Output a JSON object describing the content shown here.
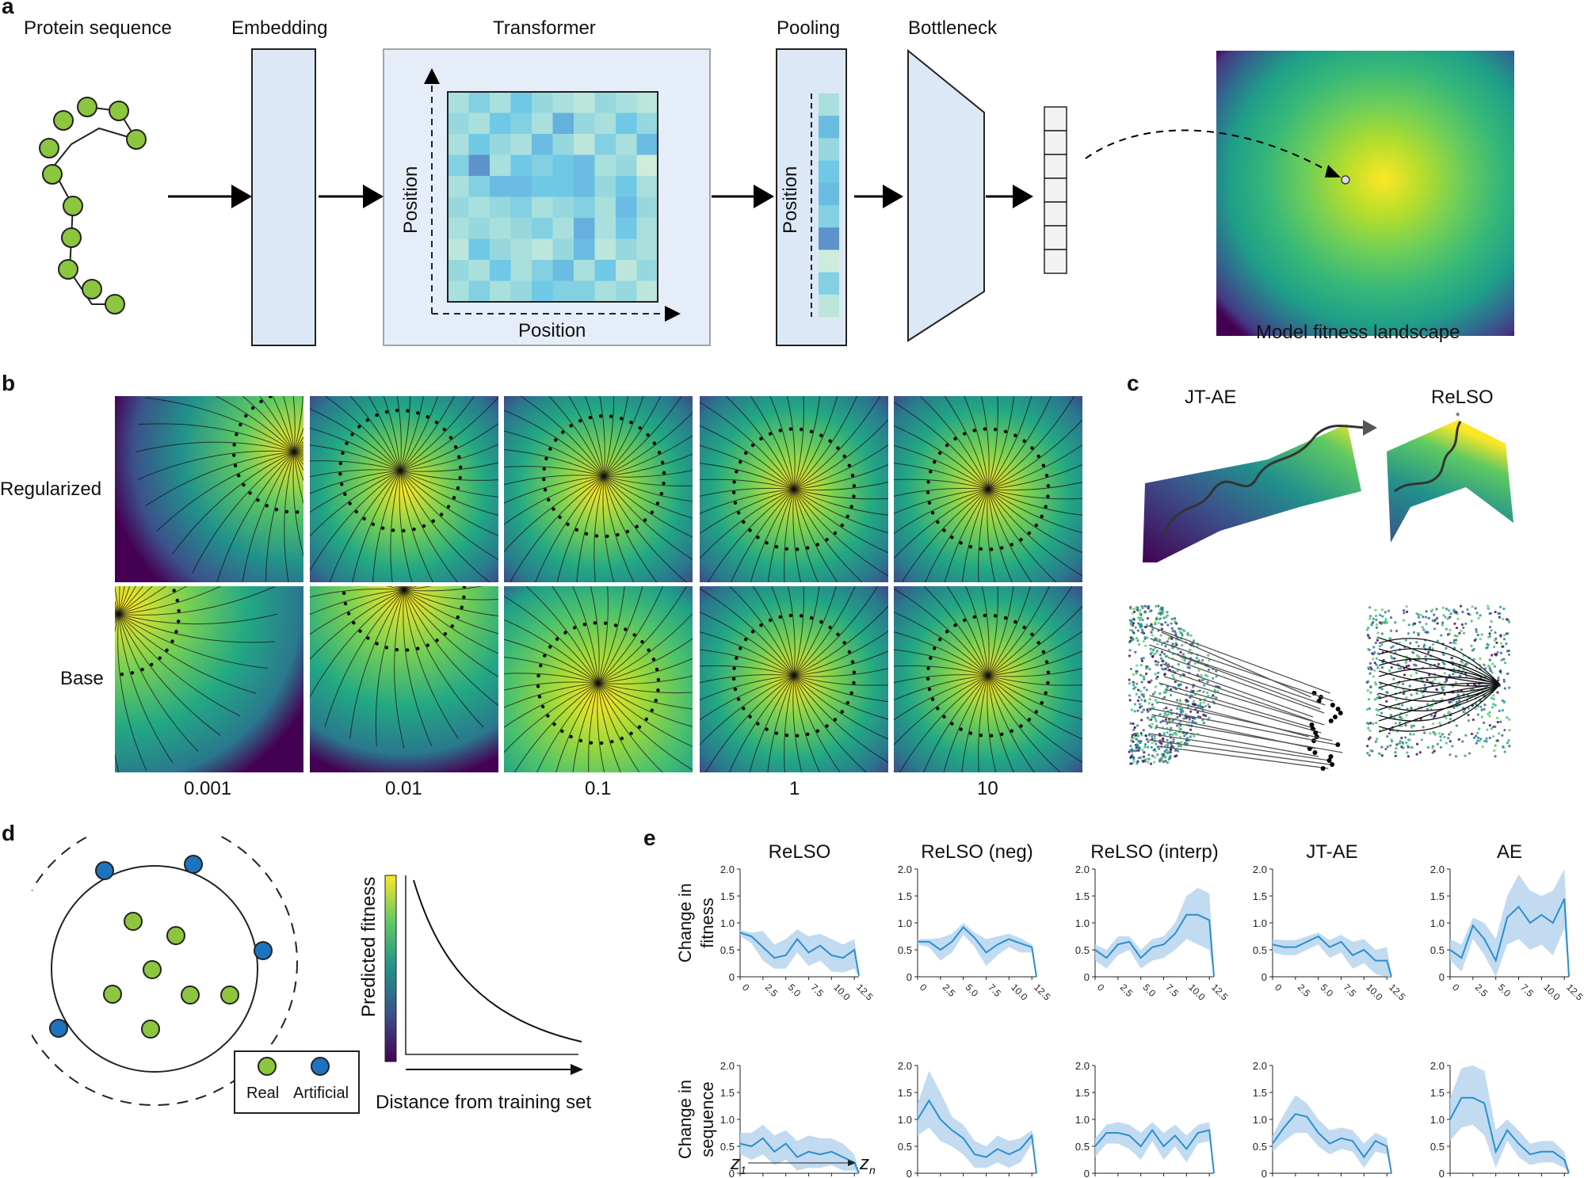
{
  "panel_labels": {
    "a": "a",
    "b": "b",
    "c": "c",
    "d": "d",
    "e": "e"
  },
  "panel_a": {
    "protein_sequence": "Protein sequence",
    "embedding": "Embedding",
    "transformer": "Transformer",
    "pooling": "Pooling",
    "bottleneck": "Bottleneck",
    "position_y": "Position",
    "position_x": "Position",
    "pooling_position": "Position",
    "landscape_caption": "Model fitness landscape",
    "heatmap_values": [
      [
        0.2,
        0.4,
        0.2,
        0.5,
        0.3,
        0.2,
        0.1,
        0.3,
        0.2,
        0.1
      ],
      [
        0.3,
        0.2,
        0.5,
        0.4,
        0.2,
        0.7,
        0.3,
        0.2,
        0.5,
        0.3
      ],
      [
        0.2,
        0.5,
        0.3,
        0.2,
        0.6,
        0.3,
        0.1,
        0.4,
        0.2,
        0.6
      ],
      [
        0.4,
        0.9,
        0.2,
        0.5,
        0.4,
        0.5,
        0.6,
        0.2,
        0.3,
        0.0
      ],
      [
        0.2,
        0.4,
        0.6,
        0.6,
        0.5,
        0.5,
        0.6,
        0.3,
        0.5,
        0.2
      ],
      [
        0.3,
        0.2,
        0.3,
        0.4,
        0.2,
        0.3,
        0.4,
        0.2,
        0.6,
        0.3
      ],
      [
        0.2,
        0.3,
        0.2,
        0.3,
        0.4,
        0.2,
        0.7,
        0.2,
        0.5,
        0.2
      ],
      [
        0.1,
        0.5,
        0.3,
        0.2,
        0.1,
        0.3,
        0.6,
        0.1,
        0.3,
        0.2
      ],
      [
        0.3,
        0.2,
        0.5,
        0.2,
        0.4,
        0.6,
        0.2,
        0.5,
        0.1,
        0.3
      ],
      [
        0.2,
        0.4,
        0.2,
        0.3,
        0.5,
        0.4,
        0.4,
        0.2,
        0.3,
        0.1
      ]
    ],
    "pooling_values": [
      0.2,
      0.6,
      0.3,
      0.5,
      0.6,
      0.4,
      0.9,
      0.0,
      0.4,
      0.1
    ]
  },
  "panel_b": {
    "row_labels": [
      "Regularized",
      "Base"
    ],
    "col_labels": [
      "0.001",
      "0.01",
      "0.1",
      "1",
      "10"
    ]
  },
  "panel_c": {
    "titles": [
      "JT-AE",
      "ReLSO"
    ]
  },
  "panel_d": {
    "colorbar_label": "Predicted fitness",
    "x_label": "Distance from training set",
    "legend_real": "Real",
    "legend_artificial": "Artificial",
    "real_color": "#8cc63f",
    "artificial_color": "#1e73be"
  },
  "chart_data": [
    {
      "type": "line",
      "title": "ReLSO",
      "ylabel": "Change in fitness",
      "ylim": [
        0,
        2.0
      ],
      "x": [
        0,
        1.25,
        2.5,
        3.75,
        5.0,
        6.25,
        7.5,
        8.75,
        10.0,
        11.25,
        12.5,
        13
      ],
      "series": [
        {
          "name": "mean",
          "values": [
            0.82,
            0.75,
            0.55,
            0.35,
            0.4,
            0.7,
            0.45,
            0.58,
            0.4,
            0.35,
            0.5,
            0.02
          ],
          "upper": [
            0.87,
            0.82,
            0.85,
            0.6,
            0.7,
            0.88,
            0.75,
            0.8,
            0.7,
            0.6,
            0.7,
            0.05
          ],
          "lower": [
            0.76,
            0.62,
            0.3,
            0.15,
            0.15,
            0.45,
            0.2,
            0.3,
            0.1,
            0.08,
            0.15,
            0.0
          ]
        }
      ]
    },
    {
      "type": "line",
      "title": "ReLSO (neg)",
      "ylabel": "Change in fitness",
      "ylim": [
        0,
        2.0
      ],
      "x": [
        0,
        1.25,
        2.5,
        3.75,
        5.0,
        6.25,
        7.5,
        8.75,
        10.0,
        11.25,
        12.5,
        13
      ],
      "series": [
        {
          "name": "mean",
          "values": [
            0.65,
            0.65,
            0.5,
            0.65,
            0.92,
            0.72,
            0.45,
            0.6,
            0.7,
            0.62,
            0.55,
            0.0
          ],
          "upper": [
            0.7,
            0.7,
            0.72,
            0.8,
            1.0,
            0.82,
            0.7,
            0.75,
            0.8,
            0.72,
            0.6,
            0.02
          ],
          "lower": [
            0.6,
            0.55,
            0.3,
            0.45,
            0.78,
            0.55,
            0.2,
            0.4,
            0.55,
            0.45,
            0.45,
            0.0
          ]
        }
      ]
    },
    {
      "type": "line",
      "title": "ReLSO (interp)",
      "ylabel": "Change in fitness",
      "ylim": [
        0,
        2.0
      ],
      "x": [
        0,
        1.25,
        2.5,
        3.75,
        5.0,
        6.25,
        7.5,
        8.75,
        10.0,
        11.25,
        12.5,
        13
      ],
      "series": [
        {
          "name": "mean",
          "values": [
            0.5,
            0.35,
            0.6,
            0.65,
            0.35,
            0.55,
            0.6,
            0.8,
            1.15,
            1.15,
            1.05,
            0.0
          ],
          "upper": [
            0.6,
            0.5,
            0.75,
            0.75,
            0.5,
            0.7,
            0.75,
            1.0,
            1.5,
            1.65,
            1.55,
            0.05
          ],
          "lower": [
            0.3,
            0.15,
            0.4,
            0.5,
            0.15,
            0.3,
            0.35,
            0.5,
            0.7,
            0.6,
            0.5,
            0.0
          ]
        }
      ]
    },
    {
      "type": "line",
      "title": "JT-AE",
      "ylabel": "Change in fitness",
      "ylim": [
        0,
        2.0
      ],
      "x": [
        0,
        1.25,
        2.5,
        3.75,
        5.0,
        6.25,
        7.5,
        8.75,
        10.0,
        11.25,
        12.5,
        13
      ],
      "series": [
        {
          "name": "mean",
          "values": [
            0.6,
            0.55,
            0.55,
            0.65,
            0.75,
            0.55,
            0.65,
            0.4,
            0.5,
            0.3,
            0.3,
            0.0
          ],
          "upper": [
            0.7,
            0.68,
            0.68,
            0.75,
            0.82,
            0.68,
            0.78,
            0.65,
            0.7,
            0.5,
            0.55,
            0.05
          ],
          "lower": [
            0.45,
            0.4,
            0.4,
            0.5,
            0.6,
            0.35,
            0.45,
            0.15,
            0.25,
            0.05,
            0.0,
            0.0
          ]
        }
      ]
    },
    {
      "type": "line",
      "title": "AE",
      "ylabel": "Change in fitness",
      "ylim": [
        0,
        2.0
      ],
      "x": [
        0,
        1.25,
        2.5,
        3.75,
        5.0,
        6.25,
        7.5,
        8.75,
        10.0,
        11.25,
        12.5,
        13
      ],
      "series": [
        {
          "name": "mean",
          "values": [
            0.5,
            0.35,
            0.95,
            0.7,
            0.3,
            1.1,
            1.3,
            1.0,
            1.15,
            1.0,
            1.45,
            0.0
          ],
          "upper": [
            0.7,
            0.6,
            1.1,
            1.0,
            0.7,
            1.5,
            1.9,
            1.6,
            1.5,
            1.6,
            2.0,
            0.2
          ],
          "lower": [
            0.3,
            0.1,
            0.7,
            0.4,
            0.0,
            0.6,
            0.7,
            0.5,
            0.6,
            0.4,
            0.9,
            0.0
          ]
        }
      ]
    },
    {
      "type": "line",
      "title": "",
      "ylabel": "Change in sequence",
      "ylim": [
        0,
        2.0
      ],
      "x": [
        0,
        1.25,
        2.5,
        3.75,
        5.0,
        6.25,
        7.5,
        8.75,
        10.0,
        11.25,
        12.5,
        13
      ],
      "series": [
        {
          "name": "mean",
          "values": [
            0.55,
            0.5,
            0.65,
            0.4,
            0.55,
            0.3,
            0.4,
            0.35,
            0.4,
            0.3,
            0.2,
            0.0
          ],
          "upper": [
            0.75,
            0.75,
            0.9,
            0.7,
            0.8,
            0.6,
            0.7,
            0.65,
            0.65,
            0.55,
            0.35,
            0.05
          ],
          "lower": [
            0.35,
            0.25,
            0.35,
            0.15,
            0.25,
            0.05,
            0.1,
            0.1,
            0.15,
            0.05,
            0.05,
            0.0
          ]
        }
      ]
    },
    {
      "type": "line",
      "title": "",
      "ylabel": "Change in sequence",
      "ylim": [
        0,
        2.0
      ],
      "x": [
        0,
        1.25,
        2.5,
        3.75,
        5.0,
        6.25,
        7.5,
        8.75,
        10.0,
        11.25,
        12.5,
        13
      ],
      "series": [
        {
          "name": "mean",
          "values": [
            1.0,
            1.35,
            1.0,
            0.8,
            0.65,
            0.35,
            0.3,
            0.45,
            0.35,
            0.45,
            0.7,
            0.0
          ],
          "upper": [
            1.3,
            1.9,
            1.5,
            1.05,
            0.9,
            0.6,
            0.5,
            0.7,
            0.6,
            0.65,
            0.8,
            0.05
          ],
          "lower": [
            0.7,
            0.85,
            0.6,
            0.5,
            0.35,
            0.1,
            0.1,
            0.2,
            0.1,
            0.2,
            0.55,
            0.0
          ]
        }
      ]
    },
    {
      "type": "line",
      "title": "",
      "ylabel": "Change in sequence",
      "ylim": [
        0,
        2.0
      ],
      "x": [
        0,
        1.25,
        2.5,
        3.75,
        5.0,
        6.25,
        7.5,
        8.75,
        10.0,
        11.25,
        12.5,
        13
      ],
      "series": [
        {
          "name": "mean",
          "values": [
            0.5,
            0.75,
            0.75,
            0.7,
            0.5,
            0.8,
            0.5,
            0.7,
            0.45,
            0.75,
            0.8,
            0.0
          ],
          "upper": [
            0.65,
            0.9,
            0.95,
            0.9,
            0.75,
            0.95,
            0.75,
            0.9,
            0.7,
            0.9,
            0.95,
            0.05
          ],
          "lower": [
            0.3,
            0.55,
            0.55,
            0.45,
            0.25,
            0.6,
            0.25,
            0.5,
            0.2,
            0.55,
            0.6,
            0.0
          ]
        }
      ]
    },
    {
      "type": "line",
      "title": "",
      "ylabel": "Change in sequence",
      "ylim": [
        0,
        2.0
      ],
      "x": [
        0,
        1.25,
        2.5,
        3.75,
        5.0,
        6.25,
        7.5,
        8.75,
        10.0,
        11.25,
        12.5,
        13
      ],
      "series": [
        {
          "name": "mean",
          "values": [
            0.55,
            0.85,
            1.1,
            1.05,
            0.75,
            0.55,
            0.65,
            0.6,
            0.3,
            0.6,
            0.5,
            0.0
          ],
          "upper": [
            0.7,
            1.1,
            1.45,
            1.3,
            1.0,
            0.8,
            0.85,
            0.8,
            0.55,
            0.75,
            0.65,
            0.05
          ],
          "lower": [
            0.4,
            0.6,
            0.75,
            0.75,
            0.5,
            0.35,
            0.45,
            0.4,
            0.1,
            0.4,
            0.35,
            0.0
          ]
        }
      ]
    },
    {
      "type": "line",
      "title": "",
      "ylabel": "Change in sequence",
      "ylim": [
        0,
        2.0
      ],
      "x": [
        0,
        1.25,
        2.5,
        3.75,
        5.0,
        6.25,
        7.5,
        8.75,
        10.0,
        11.25,
        12.5,
        13
      ],
      "series": [
        {
          "name": "mean",
          "values": [
            1.0,
            1.4,
            1.4,
            1.3,
            0.4,
            0.8,
            0.55,
            0.35,
            0.4,
            0.4,
            0.25,
            0.0
          ],
          "upper": [
            1.4,
            1.95,
            2.0,
            1.9,
            0.8,
            1.0,
            0.8,
            0.55,
            0.6,
            0.6,
            0.4,
            0.05
          ],
          "lower": [
            0.6,
            0.85,
            0.9,
            0.7,
            0.1,
            0.6,
            0.3,
            0.15,
            0.2,
            0.2,
            0.1,
            0.0
          ]
        }
      ]
    }
  ],
  "axis": {
    "y_ticks": [
      "2.0",
      "1.5",
      "1.0",
      "0.5",
      "0"
    ],
    "x_ticks": [
      "0",
      "2.5",
      "5.0",
      "7.5",
      "10.0",
      "12.5"
    ],
    "ylabel_fitness": [
      "Change in",
      "fitness"
    ],
    "ylabel_sequence": [
      "Change in",
      "sequence"
    ],
    "z_start": "z",
    "z_start_sub": "1",
    "z_end": "z",
    "z_end_sub": "n"
  },
  "colors": {
    "line": "#2a8fce",
    "band": "#b7d5ee",
    "box_fill": "#dce8f5",
    "ball": "#8cc63f"
  }
}
